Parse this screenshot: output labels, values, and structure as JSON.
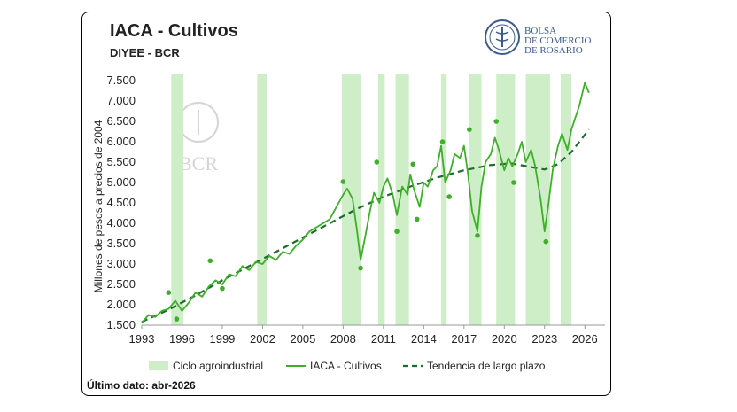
{
  "header": {
    "title": "IACA - Cultivos",
    "subtitle": "DIYEE - BCR",
    "logo_lines": [
      "BOLSA",
      "DE COMERCIO",
      "DE ROSARIO"
    ],
    "watermark": "BCR"
  },
  "footer": {
    "last_data": "Último dato: abr-2026"
  },
  "colors": {
    "line": "#3fae2a",
    "trend": "#1e6b2e",
    "band": "#cdeec6",
    "logo": "#3d5a8a"
  },
  "chart_data": {
    "type": "line",
    "ylabel": "Millones de pesos a precios de 2004",
    "xlim": [
      1993,
      2027.5
    ],
    "ylim": [
      1500,
      7500
    ],
    "x_ticks": [
      1993,
      1996,
      1999,
      2002,
      2005,
      2008,
      2011,
      2014,
      2017,
      2020,
      2023,
      2026
    ],
    "x_tick_labels": [
      "1993",
      "1996",
      "1999",
      "2002",
      "2005",
      "2008",
      "2011",
      "2014",
      "2017",
      "2020",
      "2023",
      "2026"
    ],
    "y_ticks": [
      1500,
      2000,
      2500,
      3000,
      3500,
      4000,
      4500,
      5000,
      5500,
      6000,
      6500,
      7000,
      7500
    ],
    "y_tick_labels": [
      "1.500",
      "2.000",
      "2.500",
      "3.000",
      "3.500",
      "4.000",
      "4.500",
      "5.000",
      "5.500",
      "6.000",
      "6.500",
      "7.000",
      "7.500"
    ],
    "legend": {
      "position": "bottom",
      "items": [
        "Ciclo agroindustrial",
        "IACA - Cultivos",
        "Tendencia de largo plazo"
      ]
    },
    "bands": [
      [
        1995.2,
        1996.1
      ],
      [
        2001.6,
        2002.3
      ],
      [
        2007.9,
        2009.3
      ],
      [
        2010.6,
        2011.1
      ],
      [
        2011.9,
        2012.9
      ],
      [
        2015.3,
        2015.7
      ],
      [
        2017.4,
        2018.3
      ],
      [
        2019.4,
        2020.8
      ],
      [
        2021.6,
        2023.4
      ],
      [
        2024.2,
        2025.0
      ]
    ],
    "series": [
      {
        "name": "IACA - Cultivos",
        "x": [
          1993.0,
          1993.5,
          1994.0,
          1994.5,
          1995.0,
          1995.5,
          1996.0,
          1996.5,
          1997.0,
          1997.5,
          1998.0,
          1998.5,
          1999.0,
          1999.5,
          2000.0,
          2000.5,
          2001.0,
          2001.5,
          2002.0,
          2002.5,
          2003.0,
          2003.5,
          2004.0,
          2004.5,
          2005.0,
          2005.5,
          2006.0,
          2006.5,
          2007.0,
          2007.5,
          2008.0,
          2008.3,
          2008.7,
          2009.0,
          2009.3,
          2009.6,
          2010.0,
          2010.3,
          2010.7,
          2011.0,
          2011.3,
          2011.7,
          2012.0,
          2012.4,
          2012.8,
          2013.0,
          2013.3,
          2013.7,
          2014.0,
          2014.3,
          2014.7,
          2015.0,
          2015.3,
          2015.6,
          2016.0,
          2016.3,
          2016.7,
          2017.0,
          2017.3,
          2017.6,
          2018.0,
          2018.3,
          2018.6,
          2019.0,
          2019.3,
          2019.6,
          2020.0,
          2020.3,
          2020.6,
          2021.0,
          2021.3,
          2021.6,
          2022.0,
          2022.3,
          2022.7,
          2023.0,
          2023.3,
          2023.6,
          2024.0,
          2024.3,
          2024.7,
          2025.0,
          2025.3,
          2025.6,
          2026.0,
          2026.3
        ],
        "values": [
          1550,
          1750,
          1700,
          1850,
          1900,
          2100,
          1850,
          2050,
          2300,
          2200,
          2450,
          2600,
          2500,
          2750,
          2700,
          2950,
          2850,
          3050,
          3000,
          3200,
          3100,
          3300,
          3250,
          3450,
          3600,
          3800,
          3900,
          4000,
          4100,
          4400,
          4700,
          4850,
          4600,
          3900,
          3100,
          3600,
          4300,
          4750,
          4500,
          4900,
          5100,
          4700,
          4200,
          4900,
          4700,
          5200,
          4800,
          4400,
          5000,
          4900,
          5300,
          5400,
          5900,
          5000,
          5300,
          5700,
          5600,
          5900,
          5200,
          4300,
          3800,
          4900,
          5500,
          5700,
          6100,
          5800,
          5300,
          5600,
          5400,
          5700,
          6000,
          5500,
          5800,
          5400,
          4600,
          3800,
          4500,
          5300,
          5900,
          6200,
          5800,
          6300,
          6600,
          6900,
          7450,
          7200
        ]
      },
      {
        "name": "Tendencia de largo plazo",
        "x": [
          1993,
          1995,
          1997,
          1999,
          2001,
          2003,
          2005,
          2007,
          2009,
          2011,
          2013,
          2015,
          2017,
          2019,
          2020.5,
          2022,
          2023,
          2024,
          2025,
          2026.3
        ],
        "values": [
          1580,
          1880,
          2230,
          2600,
          2950,
          3300,
          3650,
          4000,
          4350,
          4650,
          4900,
          5120,
          5300,
          5430,
          5470,
          5380,
          5320,
          5450,
          5750,
          6300
        ]
      }
    ],
    "markers": {
      "x": [
        1995.0,
        1995.6,
        1998.1,
        1999.0,
        2008.0,
        2009.3,
        2010.5,
        2012.0,
        2013.2,
        2013.5,
        2015.4,
        2015.9,
        2017.4,
        2018.0,
        2019.4,
        2020.7,
        2023.1
      ],
      "values": [
        2300,
        1650,
        3080,
        2400,
        5020,
        2900,
        5500,
        3800,
        5450,
        4100,
        6000,
        4650,
        6300,
        3700,
        6500,
        5000,
        3550
      ]
    }
  }
}
